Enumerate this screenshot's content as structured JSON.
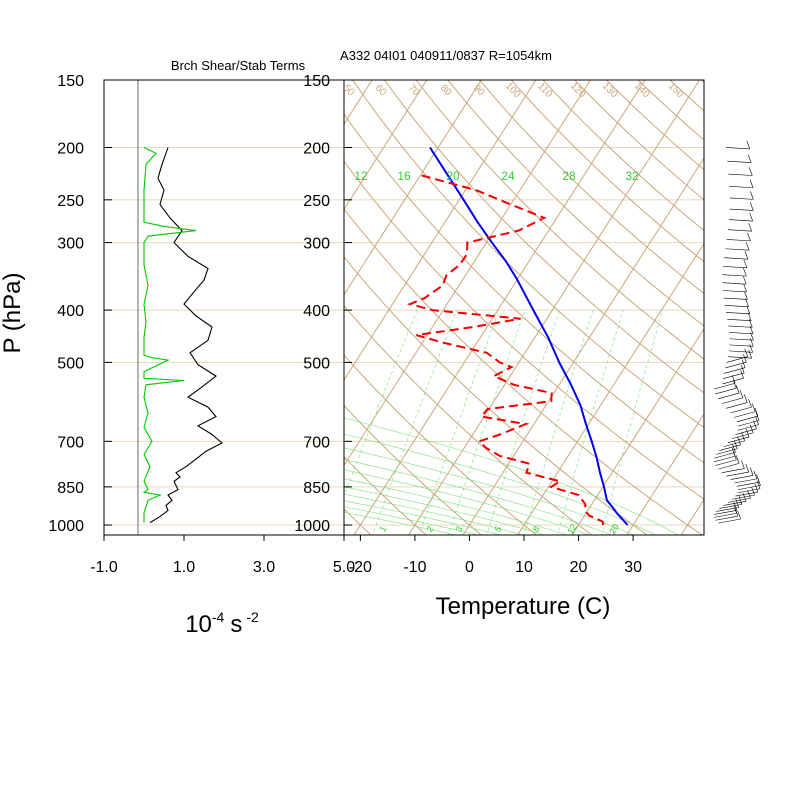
{
  "figure": {
    "header": "A332 04I01 040911/0837 R=1054km",
    "ylabel": "P (hPa)",
    "pressure_ticks": [
      "150",
      "200",
      "250",
      "300",
      "400",
      "500",
      "700",
      "850",
      "1000"
    ]
  },
  "colors": {
    "grid_tan": "#c9a77c",
    "pressure_line": "#e8d6bd",
    "mixing_ratio_green": "#7ee07e",
    "green_label": "#33cc33",
    "temperature_blue": "#0000ee",
    "dewpoint_red": "#ee0000",
    "shear_black": "#000000",
    "stability_green": "#00cc00"
  },
  "chart_data": [
    {
      "type": "line",
      "title": "Brch Shear/Stab Terms",
      "xlabel_base": "10",
      "xlabel_exp": "-4",
      "xlabel_unit": "s",
      "xlabel_unit_exp": "-2",
      "xticks": [
        "-1.0",
        "1.0",
        "3.0",
        "5.0"
      ],
      "xlim": [
        -1.0,
        5.0
      ],
      "ylim_hPa": [
        1000,
        150
      ],
      "log_pressure": true,
      "series": [
        {
          "color": "#000000",
          "x": [
            0.6,
            0.45,
            0.35,
            0.5,
            0.4,
            0.65,
            0.95,
            0.75,
            1.1,
            1.6,
            1.5,
            1.25,
            1.0,
            1.3,
            1.7,
            1.6,
            1.15,
            1.35,
            1.8,
            1.45,
            1.1,
            1.6,
            1.8,
            1.35,
            1.7,
            1.95,
            1.55,
            1.3,
            1.05,
            0.8,
            0.9,
            0.75,
            0.85,
            0.6,
            0.7,
            0.55,
            0.6,
            0.4,
            0.15
          ],
          "p": [
            200,
            215,
            228,
            240,
            255,
            270,
            285,
            300,
            318,
            335,
            352,
            370,
            390,
            410,
            430,
            455,
            480,
            505,
            530,
            555,
            580,
            605,
            630,
            655,
            680,
            705,
            730,
            755,
            780,
            800,
            815,
            830,
            860,
            880,
            900,
            920,
            940,
            965,
            990
          ]
        },
        {
          "color": "#00cc00",
          "x": [
            0.0,
            0.3,
            0.05,
            0.0,
            0.0,
            0.0,
            0.5,
            1.3,
            0.1,
            0.0,
            0.0,
            0.1,
            0.0,
            0.05,
            0.0,
            0.0,
            0.0,
            0.0,
            0.2,
            0.6,
            0.0,
            0.0,
            1.0,
            0.05,
            0.0,
            0.1,
            0.0,
            0.2,
            0.0,
            0.15,
            0.0,
            0.1,
            0.0,
            0.4,
            0.1,
            0.0,
            0.0
          ],
          "p": [
            200,
            205,
            215,
            240,
            260,
            275,
            280,
            285,
            292,
            300,
            330,
            360,
            390,
            420,
            450,
            470,
            480,
            485,
            490,
            495,
            520,
            535,
            540,
            550,
            580,
            620,
            660,
            700,
            740,
            780,
            830,
            860,
            870,
            880,
            900,
            950,
            990
          ]
        }
      ]
    },
    {
      "type": "line",
      "title": "",
      "xlabel": "Temperature (C)",
      "xticks": [
        "-20",
        "-10",
        "0",
        "10",
        "20",
        "30"
      ],
      "ylim_hPa": [
        1000,
        150
      ],
      "xlim_at_1000hPa": [
        -23,
        43
      ],
      "log_pressure": true,
      "skew": true,
      "mixing_ratio_labels": [
        "1",
        "2",
        "3",
        "5",
        "8",
        "12",
        "20"
      ],
      "mixing_ratio_labels_upper": [
        "12",
        "16",
        "20",
        "24",
        "28",
        "32"
      ],
      "isotherm_labels": [
        "50",
        "60",
        "70",
        "80",
        "90",
        "100",
        "110",
        "120",
        "130",
        "140",
        "150"
      ],
      "series": [
        {
          "name": "",
          "color": "#0000ee",
          "style": "solid",
          "p": [
            1000,
            975,
            950,
            925,
            900,
            850,
            800,
            750,
            700,
            650,
            600,
            550,
            500,
            450,
            400,
            350,
            325,
            300,
            275,
            250,
            225,
            200
          ],
          "t": [
            29,
            27.3,
            25.6,
            24,
            22.3,
            20.2,
            17.8,
            15.4,
            12.6,
            9.5,
            6.3,
            2.2,
            -2.6,
            -7.5,
            -13.5,
            -20.2,
            -24.2,
            -29.0,
            -34.0,
            -39.2,
            -45.0,
            -51.5
          ]
        },
        {
          "name": "",
          "color": "#ee0000",
          "style": "dashed",
          "p": [
            1000,
            985,
            960,
            940,
            915,
            880,
            850,
            830,
            800,
            770,
            745,
            720,
            700,
            680,
            650,
            630,
            610,
            590,
            570,
            550,
            530,
            510,
            500,
            480,
            460,
            445,
            430,
            415,
            400,
            390,
            380,
            360,
            345,
            330,
            315,
            300,
            285,
            270,
            255,
            240,
            225
          ],
          "t": [
            24.5,
            24.0,
            20.8,
            19.5,
            18.8,
            16.5,
            10.5,
            11.5,
            4.3,
            3.8,
            -2.5,
            -6.0,
            -8.0,
            -5.0,
            -1.5,
            -10.5,
            -10.3,
            0.5,
            -0.4,
            -8.3,
            -13.0,
            -10.8,
            -13.5,
            -17.0,
            -26.0,
            -32.0,
            -22.5,
            -14.8,
            -32.0,
            -36.8,
            -34.8,
            -33.0,
            -33.5,
            -32.3,
            -32.2,
            -33.5,
            -25.5,
            -22.3,
            -30.0,
            -38.0,
            -50.0
          ]
        }
      ]
    }
  ]
}
